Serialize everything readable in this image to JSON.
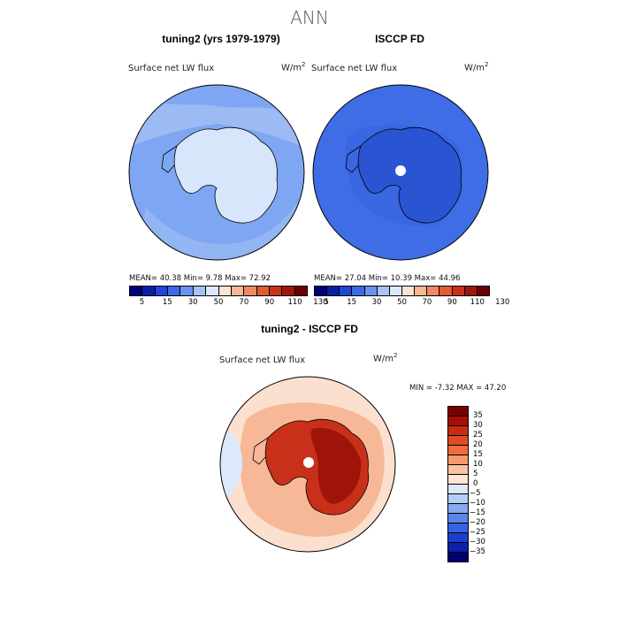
{
  "main_title": "ANN",
  "panels": [
    {
      "title": "tuning2 (yrs 1979-1979)",
      "variable": "Surface net LW flux",
      "units_base": "W/m",
      "units_exp": "2",
      "stats": "MEAN=  40.38  Min=   9.78  Max=  72.92",
      "colorbar_labels": [
        "5",
        "15",
        "30",
        "50",
        "70",
        "90",
        "110",
        "130"
      ],
      "colorbar_colors": [
        "#00007a",
        "#0a1fa8",
        "#1f46d8",
        "#3a6ae8",
        "#6a93ef",
        "#a8c2f5",
        "#dce9fb",
        "#fbe3d3",
        "#f7b797",
        "#f08a62",
        "#e45a33",
        "#c8321a",
        "#a0160c",
        "#6e0000"
      ]
    },
    {
      "title": "ISCCP FD",
      "variable": "Surface net LW flux",
      "units_base": "W/m",
      "units_exp": "2",
      "stats": "MEAN=  27.04  Min=  10.39  Max=  44.96",
      "colorbar_labels": [
        "5",
        "15",
        "30",
        "50",
        "70",
        "90",
        "110",
        "130"
      ],
      "colorbar_colors": [
        "#00007a",
        "#0a1fa8",
        "#1f46d8",
        "#3a6ae8",
        "#6a93ef",
        "#a8c2f5",
        "#dce9fb",
        "#fbe3d3",
        "#f7b797",
        "#f08a62",
        "#e45a33",
        "#c8321a",
        "#a0160c",
        "#6e0000"
      ]
    }
  ],
  "diff": {
    "title": "tuning2 - ISCCP FD",
    "variable": "Surface net LW flux",
    "units_base": "W/m",
    "units_exp": "2",
    "stats": "MIN =   -7.32  MAX =   47.20",
    "colorbar_labels": [
      "35",
      "30",
      "25",
      "20",
      "15",
      "10",
      "5",
      "0",
      "−5",
      "−10",
      "−15",
      "−20",
      "−25",
      "−30",
      "−35"
    ],
    "colorbar_colors": [
      "#7a0000",
      "#a80e05",
      "#c82a12",
      "#e04a25",
      "#ef6d3f",
      "#f59a6e",
      "#f9c3a3",
      "#fde6d6",
      "#dce9fb",
      "#b3cdf6",
      "#86aaf0",
      "#5a86ea",
      "#3563e3",
      "#1a3fcf",
      "#0a20a8",
      "#000070"
    ]
  },
  "map_colors": {
    "ocean_model": "#7ea6f2",
    "ocean_model_light": "#a9c4f6",
    "ocean_obs": "#3f6de6",
    "ocean_obs_dark": "#2f58d6",
    "antarctica_model": "#d8e6fb",
    "antarctica_obs": "#2a52d2",
    "diff_ocean": "#fbe0cf",
    "diff_ocean_warm": "#f6b896",
    "diff_land": "#c8301a",
    "diff_land_dark": "#9e1409",
    "diff_cool": "#dce9fb"
  }
}
